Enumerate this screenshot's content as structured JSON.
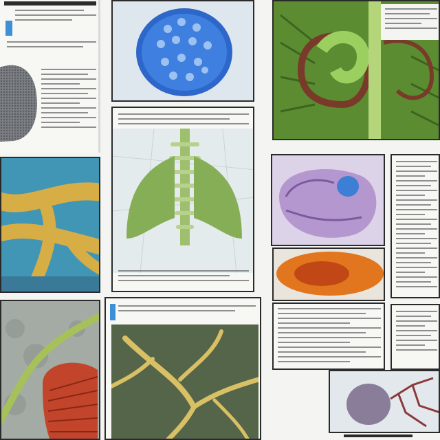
{
  "image": {
    "width": 640,
    "height": 640,
    "background": "#f4f4f2"
  },
  "tiles": [
    {
      "name": "grey-organ-page",
      "colors": [
        "#7a7d82",
        "#5a5d60"
      ]
    },
    {
      "name": "blue-cell-cluster",
      "colors": [
        "#2f6fd6",
        "#dfe6ec"
      ]
    },
    {
      "name": "green-lung-illustration",
      "colors": [
        "#6aa23c",
        "#7a3a2a"
      ]
    },
    {
      "name": "green-ribcage-page",
      "colors": [
        "#8ab35a",
        "#e7ecee"
      ]
    },
    {
      "name": "yellow-branches-blue",
      "colors": [
        "#d8b24a",
        "#3e94b5"
      ]
    },
    {
      "name": "purple-cell-section",
      "colors": [
        "#a889c3",
        "#3f7fd0"
      ]
    },
    {
      "name": "orange-organ",
      "colors": [
        "#e07a25",
        "#c04a1a"
      ]
    },
    {
      "name": "grey-tissue-red-gills",
      "colors": [
        "#9aa39a",
        "#c2452b"
      ]
    },
    {
      "name": "yellow-branches-dark",
      "colors": [
        "#d9c065",
        "#4a5a40"
      ]
    },
    {
      "name": "purple-sphere-vessels",
      "colors": [
        "#8a7d9a",
        "#8a3a3a"
      ]
    }
  ]
}
